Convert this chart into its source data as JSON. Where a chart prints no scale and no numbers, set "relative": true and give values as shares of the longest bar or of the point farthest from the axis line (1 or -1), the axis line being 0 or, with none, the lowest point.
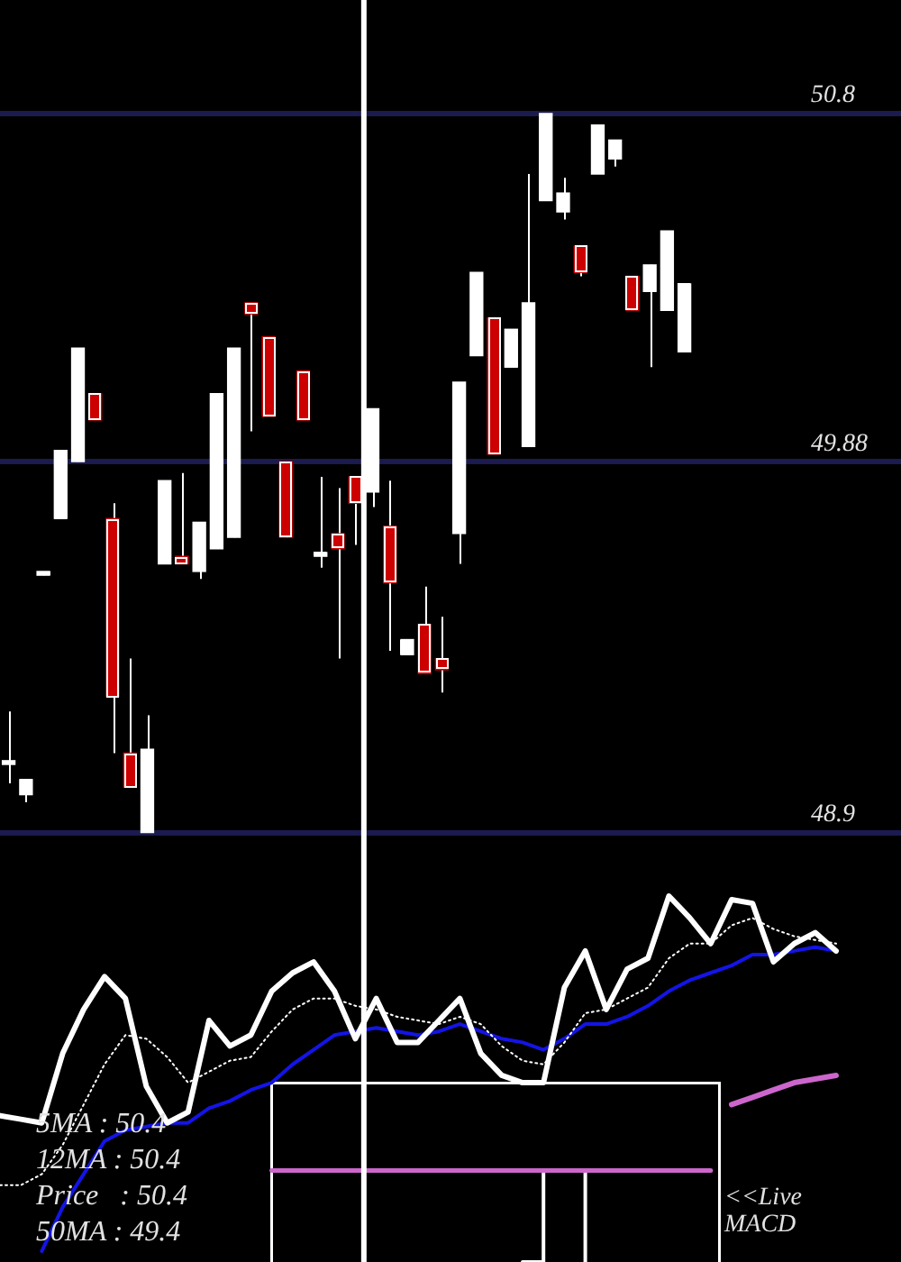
{
  "chart_data": [
    {
      "type": "candlestick",
      "categories": [
        null,
        null,
        null,
        null,
        null,
        null,
        null,
        null,
        null,
        null,
        null,
        null,
        null,
        null,
        null,
        null,
        null,
        null,
        null,
        null,
        null,
        null,
        null,
        null,
        null,
        null,
        null,
        null,
        null,
        null,
        null,
        null,
        null,
        null,
        null,
        null,
        null,
        null,
        null,
        null,
        null,
        null,
        null,
        null,
        null,
        null,
        null,
        null,
        null,
        null,
        null,
        null
      ],
      "ohlc": [
        [
          49.08,
          49.22,
          49.03,
          49.09
        ],
        [
          49.0,
          49.04,
          48.98,
          49.04
        ],
        [
          49.58,
          49.59,
          49.58,
          49.59
        ],
        [
          49.73,
          49.91,
          49.73,
          49.91
        ],
        [
          49.88,
          50.18,
          49.88,
          50.18
        ],
        [
          50.06,
          50.06,
          49.99,
          49.99
        ],
        [
          49.73,
          49.77,
          49.11,
          49.26
        ],
        [
          49.11,
          49.36,
          49.02,
          49.02
        ],
        [
          48.9,
          49.21,
          48.9,
          49.12
        ],
        [
          49.61,
          49.83,
          49.61,
          49.83
        ],
        [
          49.63,
          49.85,
          49.61,
          49.61
        ],
        [
          49.59,
          49.72,
          49.57,
          49.72
        ],
        [
          49.65,
          50.06,
          49.65,
          50.06
        ],
        [
          49.68,
          50.18,
          49.68,
          50.18
        ],
        [
          50.3,
          50.3,
          49.96,
          50.27
        ],
        [
          50.21,
          50.21,
          50.0,
          50.0
        ],
        [
          49.88,
          49.88,
          49.68,
          49.68
        ],
        [
          50.12,
          50.12,
          49.99,
          49.99
        ],
        [
          49.63,
          49.84,
          49.6,
          49.64
        ],
        [
          49.69,
          49.81,
          49.36,
          49.65
        ],
        [
          49.84,
          49.84,
          49.66,
          49.77
        ],
        [
          49.8,
          50.02,
          49.76,
          50.02
        ],
        [
          49.71,
          49.83,
          49.38,
          49.56
        ],
        [
          49.37,
          49.41,
          49.37,
          49.41
        ],
        [
          49.45,
          49.55,
          49.32,
          49.32
        ],
        [
          49.36,
          49.47,
          49.27,
          49.33
        ],
        [
          49.69,
          50.09,
          49.61,
          50.09
        ],
        [
          50.16,
          50.38,
          50.16,
          50.38
        ],
        [
          50.26,
          50.26,
          49.9,
          49.9
        ],
        [
          50.13,
          50.23,
          50.13,
          50.23
        ],
        [
          49.92,
          50.64,
          49.92,
          50.3
        ],
        [
          50.57,
          50.8,
          50.57,
          50.8
        ],
        [
          50.54,
          50.63,
          50.52,
          50.59
        ],
        [
          50.45,
          50.45,
          50.37,
          50.38
        ],
        [
          50.64,
          50.77,
          50.64,
          50.77
        ],
        [
          50.68,
          50.73,
          50.66,
          50.73
        ],
        [
          50.37,
          50.37,
          50.28,
          50.28
        ],
        [
          50.33,
          50.4,
          50.13,
          50.4
        ],
        [
          50.28,
          50.49,
          50.28,
          50.49
        ],
        [
          50.17,
          50.35,
          50.17,
          50.35
        ],
        null,
        null,
        null,
        null,
        null,
        null,
        null,
        null,
        null,
        null,
        null,
        null
      ],
      "colors": [
        "#ffffff",
        "#ffffff",
        "#ffffff",
        "#ffffff",
        "#ffffff",
        "#cc0000",
        "#cc0000",
        "#cc0000",
        "#ffffff",
        "#ffffff",
        "#cc0000",
        "#ffffff",
        "#ffffff",
        "#ffffff",
        "#cc0000",
        "#cc0000",
        "#cc0000",
        "#cc0000",
        "#ffffff",
        "#cc0000",
        "#cc0000",
        "#ffffff",
        "#cc0000",
        "#ffffff",
        "#cc0000",
        "#cc0000",
        "#ffffff",
        "#ffffff",
        "#cc0000",
        "#ffffff",
        "#ffffff",
        "#ffffff",
        "#ffffff",
        "#cc0000",
        "#ffffff",
        "#ffffff",
        "#cc0000",
        "#ffffff",
        "#ffffff",
        "#ffffff",
        null,
        null,
        null,
        null,
        null,
        null,
        null,
        null,
        null,
        null,
        null,
        null
      ],
      "ylim": [
        48.88,
        51.1
      ],
      "yticks": [
        48.9,
        49.88,
        50.8
      ],
      "grid": "y",
      "tick_labels": "y"
    },
    {
      "type": "line",
      "relative": true,
      "categories": [
        null,
        null,
        null,
        null,
        null,
        null,
        null,
        null,
        null,
        null,
        null,
        null,
        null,
        null,
        null,
        null,
        null,
        null,
        null,
        null,
        null,
        null,
        null,
        null,
        null,
        null,
        null,
        null,
        null,
        null,
        null,
        null,
        null,
        null,
        null,
        null,
        null,
        null,
        null,
        null,
        null
      ],
      "series": [
        {
          "color": "#ffffff",
          "values": [
            0.4,
            0.39,
            0.38,
            0.57,
            0.69,
            0.78,
            0.72,
            0.48,
            0.38,
            0.41,
            0.66,
            0.59,
            0.62,
            0.74,
            0.79,
            0.82,
            0.74,
            0.61,
            0.72,
            0.6,
            0.6,
            0.66,
            0.72,
            0.57,
            0.51,
            0.49,
            0.49,
            0.75,
            0.85,
            0.69,
            0.8,
            0.83,
            1,
            0.94,
            0.87,
            0.99,
            0.98,
            0.82,
            0.87,
            0.9,
            0.85
          ]
        },
        {
          "color": "#ffffff",
          "line_style": "dotted",
          "values": [
            0.21,
            0.21,
            0.24,
            0.32,
            0.43,
            0.54,
            0.62,
            0.61,
            0.56,
            0.49,
            0.52,
            0.55,
            0.56,
            0.63,
            0.69,
            0.72,
            0.72,
            0.7,
            0.69,
            0.67,
            0.66,
            0.65,
            0.67,
            0.65,
            0.59,
            0.55,
            0.54,
            0.6,
            0.68,
            0.69,
            0.72,
            0.75,
            0.83,
            0.87,
            0.87,
            0.92,
            0.94,
            0.91,
            0.89,
            0.88,
            0.87
          ]
        },
        {
          "color": "#1414e6",
          "values": [
            null,
            null,
            0.03,
            0.15,
            0.24,
            0.33,
            0.36,
            0.37,
            0.38,
            0.38,
            0.42,
            0.44,
            0.47,
            0.49,
            0.54,
            0.58,
            0.62,
            0.63,
            0.64,
            0.63,
            0.62,
            0.63,
            0.65,
            0.63,
            0.61,
            0.6,
            0.58,
            0.61,
            0.65,
            0.65,
            0.67,
            0.7,
            0.74,
            0.77,
            0.79,
            0.81,
            0.84,
            0.84,
            0.85,
            0.86,
            0.85
          ]
        },
        {
          "color": "#cc66cc",
          "values": [
            null,
            null,
            null,
            null,
            null,
            null,
            null,
            null,
            null,
            null,
            null,
            null,
            null,
            null,
            null,
            null,
            null,
            null,
            null,
            null,
            null,
            null,
            null,
            null,
            null,
            null,
            null,
            null,
            null,
            null,
            null,
            null,
            null,
            null,
            null,
            0.43,
            0.45,
            0.47,
            0.49,
            0.5,
            0.51
          ]
        },
        {
          "color": "#cc66cc",
          "values": [
            null,
            null,
            null,
            null,
            null,
            null,
            null,
            null,
            null,
            null,
            null,
            null,
            null,
            0.25,
            0.25,
            0.25,
            0.25,
            0.25,
            0.25,
            0.25,
            0.25,
            0.25,
            0.25,
            0.25,
            0.25,
            0.25,
            0.25,
            0.25,
            0.25,
            0.25,
            0.25,
            0.25,
            0.25,
            0.25,
            0.25,
            null,
            null,
            null,
            null,
            null,
            null
          ]
        },
        {
          "type": "step",
          "color": "#ffffff",
          "values": [
            null,
            null,
            null,
            null,
            null,
            null,
            null,
            null,
            null,
            null,
            null,
            null,
            null,
            null,
            null,
            null,
            null,
            null,
            null,
            null,
            null,
            null,
            null,
            null,
            null,
            0,
            0.25,
            0.25,
            0,
            null,
            null,
            null,
            null,
            null,
            null,
            null,
            null,
            null,
            null,
            null,
            null
          ]
        }
      ],
      "annotations": [
        "5MA : 50.4",
        "12MA : 50.4",
        "Price   : 50.4",
        "50MA : 49.4",
        "<<Live MACD"
      ]
    }
  ]
}
